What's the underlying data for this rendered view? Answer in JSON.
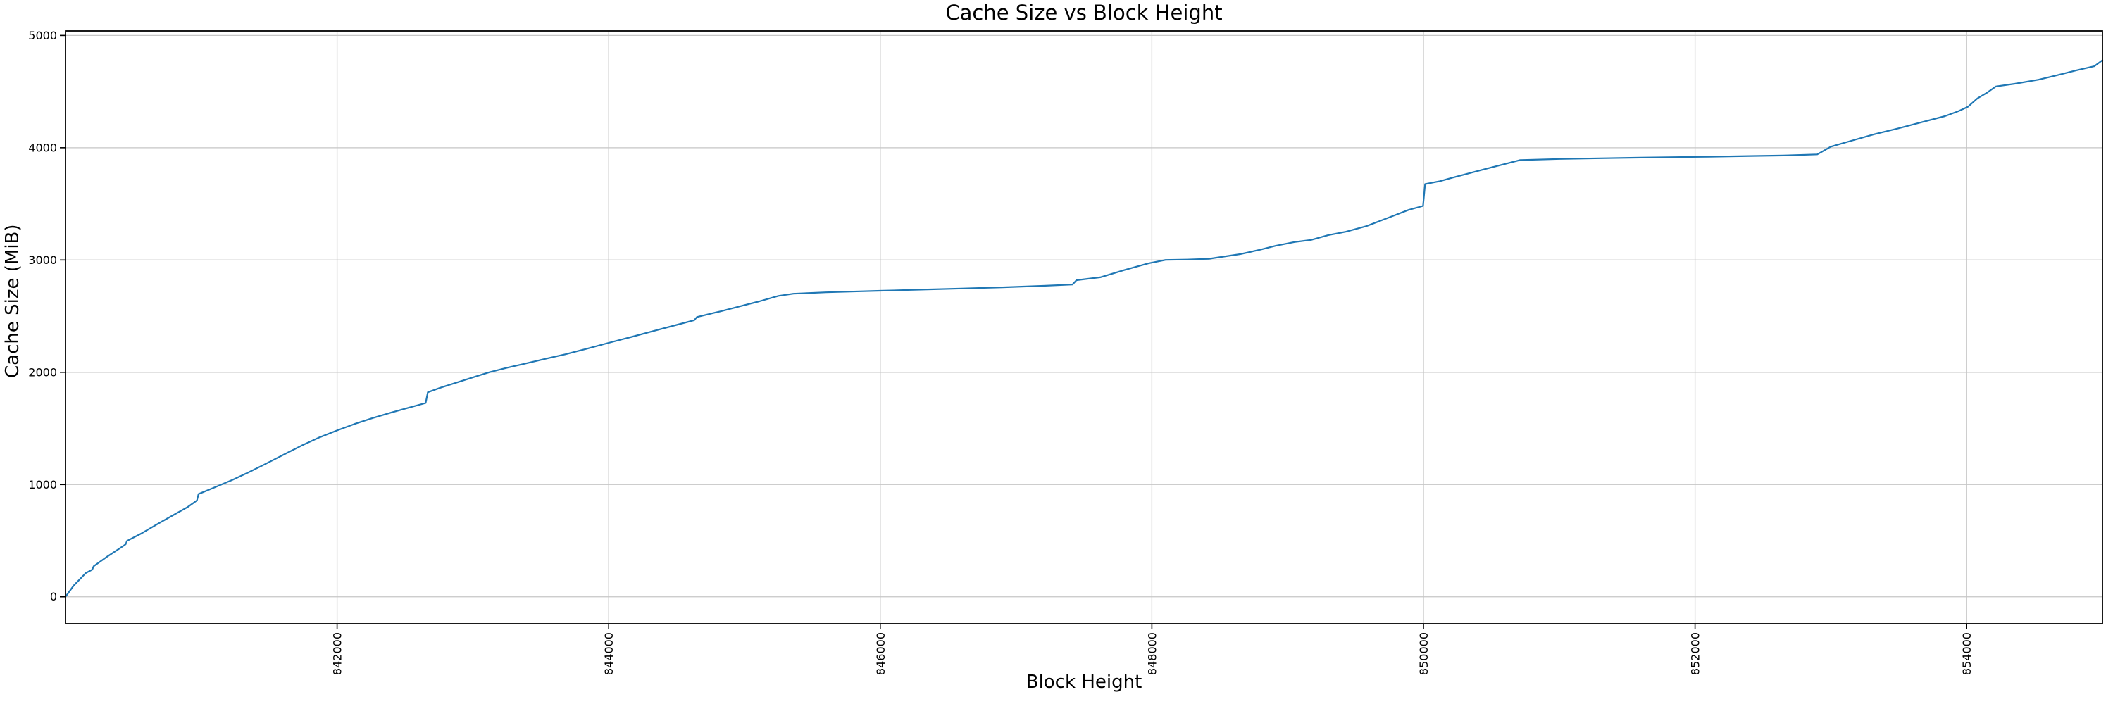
{
  "figure": {
    "background": "#ffffff"
  },
  "chart_data": {
    "type": "line",
    "title": "Cache Size vs Block Height",
    "xlabel": "Block Height",
    "ylabel": "Cache Size (MiB)",
    "xlim": [
      840000,
      855000
    ],
    "ylim": [
      -240,
      5040
    ],
    "grid": true,
    "legend": false,
    "line_color": "#1f77b4",
    "grid_color": "#c6c6c6",
    "spine_color": "#000000",
    "tick_color": "#000000",
    "text_color": "#000000",
    "xticks": {
      "values": [
        842000,
        844000,
        846000,
        848000,
        850000,
        852000,
        854000
      ],
      "labels": [
        "842000",
        "844000",
        "846000",
        "848000",
        "850000",
        "852000",
        "854000"
      ],
      "rotation": -90
    },
    "yticks": {
      "values": [
        0,
        1000,
        2000,
        3000,
        4000,
        5000
      ],
      "labels": [
        "0",
        "1000",
        "2000",
        "3000",
        "4000",
        "5000"
      ],
      "rotation": 0
    },
    "series": [
      {
        "points": [
          [
            840000,
            0
          ],
          [
            840060,
            100
          ],
          [
            840150,
            212
          ],
          [
            840197,
            242
          ],
          [
            840207,
            272
          ],
          [
            840300,
            352
          ],
          [
            840400,
            432
          ],
          [
            840443,
            468
          ],
          [
            840453,
            498
          ],
          [
            840560,
            565
          ],
          [
            840680,
            650
          ],
          [
            840800,
            732
          ],
          [
            840900,
            800
          ],
          [
            840968,
            858
          ],
          [
            840980,
            916
          ],
          [
            841100,
            976
          ],
          [
            841230,
            1042
          ],
          [
            841350,
            1110
          ],
          [
            841480,
            1188
          ],
          [
            841610,
            1268
          ],
          [
            841740,
            1348
          ],
          [
            841870,
            1420
          ],
          [
            842000,
            1482
          ],
          [
            842130,
            1540
          ],
          [
            842260,
            1592
          ],
          [
            842400,
            1642
          ],
          [
            842530,
            1686
          ],
          [
            842652,
            1726
          ],
          [
            842668,
            1822
          ],
          [
            842760,
            1862
          ],
          [
            842890,
            1912
          ],
          [
            843020,
            1962
          ],
          [
            843120,
            2000
          ],
          [
            843250,
            2040
          ],
          [
            843380,
            2076
          ],
          [
            843520,
            2116
          ],
          [
            843680,
            2160
          ],
          [
            843840,
            2210
          ],
          [
            844000,
            2262
          ],
          [
            844160,
            2312
          ],
          [
            844320,
            2364
          ],
          [
            844500,
            2422
          ],
          [
            844630,
            2464
          ],
          [
            844650,
            2492
          ],
          [
            844820,
            2542
          ],
          [
            844980,
            2592
          ],
          [
            845110,
            2632
          ],
          [
            845250,
            2680
          ],
          [
            845360,
            2700
          ],
          [
            845600,
            2712
          ],
          [
            845850,
            2721
          ],
          [
            846000,
            2726
          ],
          [
            846300,
            2736
          ],
          [
            846600,
            2746
          ],
          [
            846900,
            2757
          ],
          [
            847200,
            2770
          ],
          [
            847415,
            2781
          ],
          [
            847445,
            2820
          ],
          [
            847620,
            2846
          ],
          [
            847800,
            2912
          ],
          [
            847975,
            2970
          ],
          [
            848100,
            3001
          ],
          [
            848260,
            3004
          ],
          [
            848420,
            3011
          ],
          [
            848650,
            3052
          ],
          [
            848800,
            3092
          ],
          [
            848910,
            3126
          ],
          [
            849050,
            3160
          ],
          [
            849170,
            3178
          ],
          [
            849300,
            3222
          ],
          [
            849430,
            3252
          ],
          [
            849580,
            3302
          ],
          [
            849740,
            3376
          ],
          [
            849890,
            3446
          ],
          [
            849997,
            3482
          ],
          [
            850012,
            3676
          ],
          [
            850120,
            3702
          ],
          [
            850210,
            3732
          ],
          [
            850460,
            3812
          ],
          [
            850620,
            3862
          ],
          [
            850710,
            3890
          ],
          [
            851000,
            3900
          ],
          [
            851300,
            3906
          ],
          [
            851600,
            3912
          ],
          [
            851850,
            3916
          ],
          [
            852100,
            3920
          ],
          [
            852400,
            3926
          ],
          [
            852650,
            3931
          ],
          [
            852900,
            3941
          ],
          [
            853000,
            4010
          ],
          [
            853150,
            4062
          ],
          [
            853320,
            4120
          ],
          [
            853490,
            4170
          ],
          [
            853665,
            4226
          ],
          [
            853840,
            4281
          ],
          [
            853940,
            4326
          ],
          [
            854010,
            4365
          ],
          [
            854080,
            4440
          ],
          [
            854150,
            4490
          ],
          [
            854215,
            4546
          ],
          [
            854355,
            4570
          ],
          [
            854530,
            4606
          ],
          [
            854700,
            4656
          ],
          [
            854810,
            4690
          ],
          [
            854940,
            4726
          ],
          [
            855000,
            4780
          ]
        ]
      }
    ]
  }
}
